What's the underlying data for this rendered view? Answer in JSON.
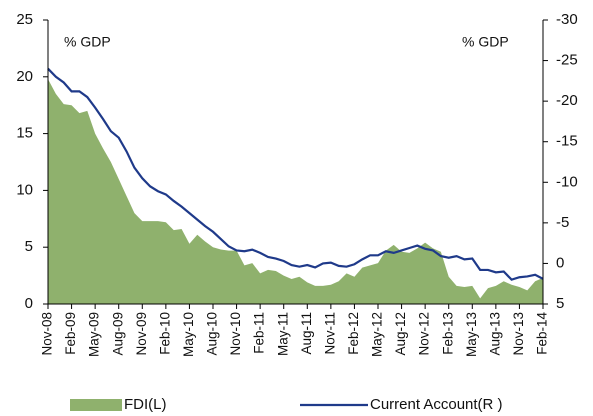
{
  "chart_data": {
    "type": "combo",
    "categories": [
      "Nov-08",
      null,
      null,
      "Feb-09",
      null,
      null,
      "May-09",
      null,
      null,
      "Aug-09",
      null,
      null,
      "Nov-09",
      null,
      null,
      "Feb-10",
      null,
      null,
      "May-10",
      null,
      null,
      "Aug-10",
      null,
      null,
      "Nov-10",
      null,
      null,
      "Feb-11",
      null,
      null,
      "May-11",
      null,
      null,
      "Aug-11",
      null,
      null,
      "Nov-11",
      null,
      null,
      "Feb-12",
      null,
      null,
      "May-12",
      null,
      null,
      "Aug-12",
      null,
      null,
      "Nov-12",
      null,
      null,
      "Feb-13",
      null,
      null,
      "May-13",
      null,
      null,
      "Aug-13",
      null,
      null,
      "Nov-13",
      null,
      null,
      "Feb-14"
    ],
    "series": [
      {
        "name": "FDI(L)",
        "type": "area",
        "color": "#8fb16d",
        "axis": "y",
        "values": [
          19.8,
          18.5,
          17.6,
          17.5,
          16.8,
          17.0,
          15.0,
          13.7,
          12.5,
          11.0,
          9.5,
          8.0,
          7.3,
          7.3,
          7.3,
          7.2,
          6.5,
          6.6,
          5.3,
          6.1,
          5.5,
          5.0,
          4.8,
          4.7,
          4.7,
          3.4,
          3.6,
          2.7,
          3.0,
          2.9,
          2.5,
          2.2,
          2.4,
          1.9,
          1.6,
          1.6,
          1.7,
          2.0,
          2.7,
          2.4,
          3.2,
          3.4,
          3.6,
          4.7,
          5.2,
          4.6,
          4.5,
          4.9,
          5.4,
          4.9,
          4.6,
          2.4,
          1.6,
          1.5,
          1.6,
          0.5,
          1.4,
          1.6,
          2.0,
          1.7,
          1.5,
          1.2,
          2.0,
          2.3
        ]
      },
      {
        "name": "Current Account(R )",
        "type": "line",
        "color": "#1f3a8a",
        "axis": "y2",
        "values": [
          -24,
          -23,
          -22.3,
          -21.2,
          -21.2,
          -20.5,
          -19.2,
          -17.8,
          -16.3,
          -15.5,
          -13.8,
          -11.8,
          -10.5,
          -9.5,
          -8.9,
          -8.5,
          -7.7,
          -7.0,
          -6.2,
          -5.4,
          -4.6,
          -3.9,
          -3.0,
          -2.1,
          -1.6,
          -1.5,
          -1.7,
          -1.3,
          -0.8,
          -0.6,
          -0.3,
          0.2,
          0.4,
          0.2,
          0.5,
          0.0,
          -0.1,
          0.3,
          0.4,
          0.1,
          -0.5,
          -1.0,
          -1.0,
          -1.5,
          -1.3,
          -1.6,
          -1.9,
          -2.2,
          -1.8,
          -1.6,
          -0.9,
          -0.7,
          -0.9,
          -0.5,
          -0.6,
          0.8,
          0.8,
          1.1,
          1.0,
          2.0,
          1.7,
          1.6,
          1.4,
          1.9
        ]
      }
    ],
    "ylim": [
      0,
      25
    ],
    "yticks": [
      0,
      5,
      10,
      15,
      20,
      25
    ],
    "y2lim": [
      5,
      -30
    ],
    "y2ticks": [
      5,
      0,
      -5,
      -10,
      -15,
      -20,
      -25,
      -30
    ],
    "annotations": [
      "% GDP",
      "% GDP"
    ],
    "legend": "bottom"
  }
}
